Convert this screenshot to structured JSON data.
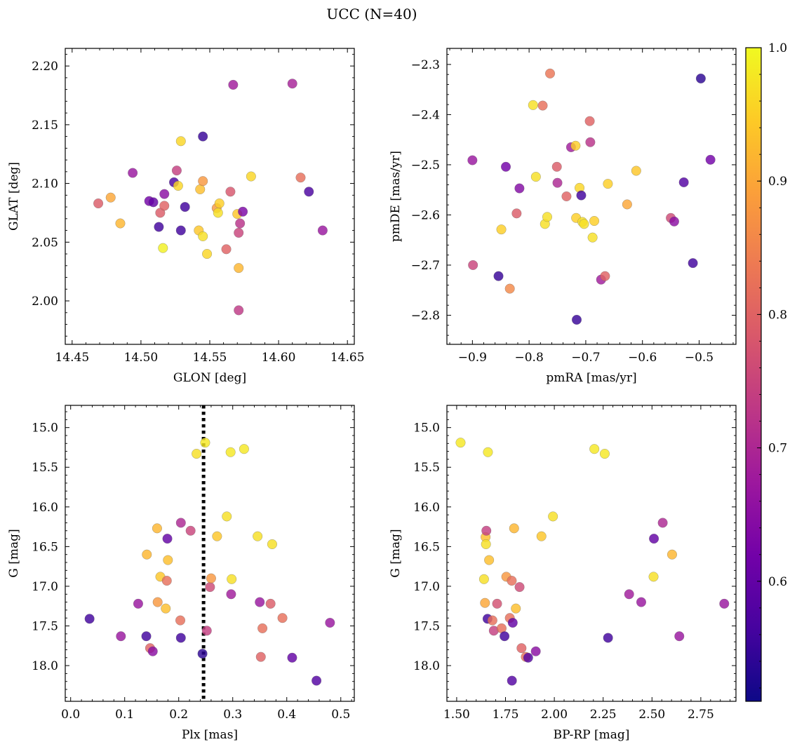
{
  "figure": {
    "title": "UCC (N=40)"
  },
  "colormap": {
    "name": "plasma",
    "range": [
      0.51,
      1.0
    ],
    "ticks": [
      "0.6",
      "0.7",
      "0.8",
      "0.9",
      "1.0"
    ],
    "tick_values": [
      0.6,
      0.7,
      0.8,
      0.9,
      1.0
    ],
    "stops": [
      "#0d0887",
      "#46039f",
      "#7201a8",
      "#9c179e",
      "#bd3786",
      "#d8576b",
      "#ed7953",
      "#fb9f3a",
      "#fdca26",
      "#f0f921"
    ]
  },
  "chart_data": [
    {
      "type": "scatter",
      "xlabel": "GLON [deg]",
      "ylabel": "GLAT [deg]",
      "xlim": [
        14.445,
        14.655
      ],
      "ylim": [
        1.963,
        2.215
      ],
      "xticks": [
        14.45,
        14.5,
        14.55,
        14.6,
        14.65
      ],
      "xtick_labels": [
        "14.45",
        "14.50",
        "14.55",
        "14.60",
        "14.65"
      ],
      "yticks": [
        2.0,
        2.05,
        2.1,
        2.15,
        2.2
      ],
      "ytick_labels": [
        "2.00",
        "2.05",
        "2.10",
        "2.15",
        "2.20"
      ],
      "points": [
        {
          "x": 14.469,
          "y": 2.083,
          "c": 0.79
        },
        {
          "x": 14.478,
          "y": 2.088,
          "c": 0.9
        },
        {
          "x": 14.485,
          "y": 2.066,
          "c": 0.92
        },
        {
          "x": 14.494,
          "y": 2.109,
          "c": 0.67
        },
        {
          "x": 14.506,
          "y": 2.085,
          "c": 0.62
        },
        {
          "x": 14.509,
          "y": 2.084,
          "c": 0.6
        },
        {
          "x": 14.513,
          "y": 2.063,
          "c": 0.56
        },
        {
          "x": 14.514,
          "y": 2.075,
          "c": 0.79
        },
        {
          "x": 14.516,
          "y": 2.045,
          "c": 0.99
        },
        {
          "x": 14.517,
          "y": 2.081,
          "c": 0.8
        },
        {
          "x": 14.517,
          "y": 2.091,
          "c": 0.65
        },
        {
          "x": 14.524,
          "y": 2.101,
          "c": 0.57
        },
        {
          "x": 14.526,
          "y": 2.111,
          "c": 0.74
        },
        {
          "x": 14.527,
          "y": 2.098,
          "c": 0.96
        },
        {
          "x": 14.529,
          "y": 2.136,
          "c": 0.96
        },
        {
          "x": 14.529,
          "y": 2.06,
          "c": 0.56
        },
        {
          "x": 14.532,
          "y": 2.08,
          "c": 0.56
        },
        {
          "x": 14.542,
          "y": 2.06,
          "c": 0.94
        },
        {
          "x": 14.543,
          "y": 2.095,
          "c": 0.93
        },
        {
          "x": 14.545,
          "y": 2.14,
          "c": 0.55
        },
        {
          "x": 14.545,
          "y": 2.102,
          "c": 0.88
        },
        {
          "x": 14.545,
          "y": 2.055,
          "c": 0.97
        },
        {
          "x": 14.548,
          "y": 2.04,
          "c": 0.96
        },
        {
          "x": 14.555,
          "y": 2.079,
          "c": 0.88
        },
        {
          "x": 14.556,
          "y": 2.075,
          "c": 0.97
        },
        {
          "x": 14.557,
          "y": 2.083,
          "c": 0.95
        },
        {
          "x": 14.562,
          "y": 2.044,
          "c": 0.8
        },
        {
          "x": 14.565,
          "y": 2.093,
          "c": 0.78
        },
        {
          "x": 14.567,
          "y": 2.184,
          "c": 0.68
        },
        {
          "x": 14.57,
          "y": 2.074,
          "c": 0.94
        },
        {
          "x": 14.571,
          "y": 2.028,
          "c": 0.92
        },
        {
          "x": 14.571,
          "y": 2.058,
          "c": 0.75
        },
        {
          "x": 14.571,
          "y": 1.992,
          "c": 0.73
        },
        {
          "x": 14.572,
          "y": 2.066,
          "c": 0.72
        },
        {
          "x": 14.574,
          "y": 2.076,
          "c": 0.63
        },
        {
          "x": 14.58,
          "y": 2.106,
          "c": 0.96
        },
        {
          "x": 14.61,
          "y": 2.185,
          "c": 0.69
        },
        {
          "x": 14.616,
          "y": 2.105,
          "c": 0.82
        },
        {
          "x": 14.622,
          "y": 2.093,
          "c": 0.57
        },
        {
          "x": 14.632,
          "y": 2.06,
          "c": 0.67
        }
      ]
    },
    {
      "type": "scatter",
      "xlabel": "pmRA [mas/yr]",
      "ylabel": "pmDE [mas/yr]",
      "xlim": [
        -0.945,
        -0.435
      ],
      "ylim": [
        -2.858,
        -2.268
      ],
      "xticks": [
        -0.9,
        -0.8,
        -0.7,
        -0.6,
        -0.5
      ],
      "xtick_labels": [
        "−0.9",
        "−0.8",
        "−0.7",
        "−0.6",
        "−0.5"
      ],
      "yticks": [
        -2.8,
        -2.7,
        -2.6,
        -2.5,
        -2.4,
        -2.3
      ],
      "ytick_labels": [
        "−2.8",
        "−2.7",
        "−2.6",
        "−2.5",
        "−2.4",
        "−2.3"
      ],
      "points": [
        {
          "x": -0.9,
          "y": -2.491,
          "c": 0.67
        },
        {
          "x": -0.899,
          "y": -2.7,
          "c": 0.75
        },
        {
          "x": -0.854,
          "y": -2.722,
          "c": 0.55
        },
        {
          "x": -0.849,
          "y": -2.629,
          "c": 0.95
        },
        {
          "x": -0.841,
          "y": -2.504,
          "c": 0.62
        },
        {
          "x": -0.834,
          "y": -2.747,
          "c": 0.86
        },
        {
          "x": -0.822,
          "y": -2.597,
          "c": 0.79
        },
        {
          "x": -0.817,
          "y": -2.547,
          "c": 0.64
        },
        {
          "x": -0.793,
          "y": -2.381,
          "c": 0.97
        },
        {
          "x": -0.788,
          "y": -2.524,
          "c": 0.97
        },
        {
          "x": -0.776,
          "y": -2.382,
          "c": 0.82
        },
        {
          "x": -0.772,
          "y": -2.618,
          "c": 0.97
        },
        {
          "x": -0.768,
          "y": -2.604,
          "c": 0.97
        },
        {
          "x": -0.763,
          "y": -2.318,
          "c": 0.83
        },
        {
          "x": -0.751,
          "y": -2.504,
          "c": 0.79
        },
        {
          "x": -0.75,
          "y": -2.536,
          "c": 0.7
        },
        {
          "x": -0.734,
          "y": -2.563,
          "c": 0.8
        },
        {
          "x": -0.726,
          "y": -2.465,
          "c": 0.68
        },
        {
          "x": -0.718,
          "y": -2.462,
          "c": 0.95
        },
        {
          "x": -0.717,
          "y": -2.606,
          "c": 0.95
        },
        {
          "x": -0.716,
          "y": -2.809,
          "c": 0.55
        },
        {
          "x": -0.711,
          "y": -2.546,
          "c": 0.96
        },
        {
          "x": -0.708,
          "y": -2.561,
          "c": 0.56
        },
        {
          "x": -0.706,
          "y": -2.614,
          "c": 0.97
        },
        {
          "x": -0.703,
          "y": -2.618,
          "c": 0.97
        },
        {
          "x": -0.693,
          "y": -2.413,
          "c": 0.8
        },
        {
          "x": -0.692,
          "y": -2.455,
          "c": 0.72
        },
        {
          "x": -0.688,
          "y": -2.645,
          "c": 0.97
        },
        {
          "x": -0.685,
          "y": -2.612,
          "c": 0.95
        },
        {
          "x": -0.673,
          "y": -2.729,
          "c": 0.68
        },
        {
          "x": -0.666,
          "y": -2.722,
          "c": 0.8
        },
        {
          "x": -0.661,
          "y": -2.538,
          "c": 0.95
        },
        {
          "x": -0.627,
          "y": -2.579,
          "c": 0.9
        },
        {
          "x": -0.611,
          "y": -2.512,
          "c": 0.94
        },
        {
          "x": -0.55,
          "y": -2.606,
          "c": 0.76
        },
        {
          "x": -0.544,
          "y": -2.613,
          "c": 0.65
        },
        {
          "x": -0.527,
          "y": -2.535,
          "c": 0.58
        },
        {
          "x": -0.511,
          "y": -2.696,
          "c": 0.56
        },
        {
          "x": -0.497,
          "y": -2.328,
          "c": 0.54
        },
        {
          "x": -0.48,
          "y": -2.49,
          "c": 0.62
        }
      ]
    },
    {
      "type": "scatter",
      "xlabel": "Plx [mas]",
      "ylabel": "G [mag]",
      "xlim": [
        -0.01,
        0.525
      ],
      "ylim": [
        18.45,
        14.72
      ],
      "yinverted": true,
      "vline": {
        "x": 0.246,
        "style": "dotted",
        "color": "#000000"
      },
      "xticks": [
        0.0,
        0.1,
        0.2,
        0.3,
        0.4,
        0.5
      ],
      "xtick_labels": [
        "0.0",
        "0.1",
        "0.2",
        "0.3",
        "0.4",
        "0.5"
      ],
      "yticks": [
        15.0,
        15.5,
        16.0,
        16.5,
        17.0,
        17.5,
        18.0
      ],
      "ytick_labels": [
        "15.0",
        "15.5",
        "16.0",
        "16.5",
        "17.0",
        "17.5",
        "18.0"
      ],
      "points": [
        {
          "x": 0.035,
          "y": 17.41,
          "c": 0.56
        },
        {
          "x": 0.093,
          "y": 17.63,
          "c": 0.67
        },
        {
          "x": 0.125,
          "y": 17.22,
          "c": 0.67
        },
        {
          "x": 0.14,
          "y": 17.63,
          "c": 0.56
        },
        {
          "x": 0.141,
          "y": 16.6,
          "c": 0.92
        },
        {
          "x": 0.147,
          "y": 17.78,
          "c": 0.8
        },
        {
          "x": 0.152,
          "y": 17.82,
          "c": 0.65
        },
        {
          "x": 0.16,
          "y": 16.27,
          "c": 0.92
        },
        {
          "x": 0.161,
          "y": 17.2,
          "c": 0.88
        },
        {
          "x": 0.166,
          "y": 16.88,
          "c": 0.94
        },
        {
          "x": 0.176,
          "y": 17.28,
          "c": 0.93
        },
        {
          "x": 0.178,
          "y": 16.93,
          "c": 0.82
        },
        {
          "x": 0.179,
          "y": 16.4,
          "c": 0.6
        },
        {
          "x": 0.18,
          "y": 16.67,
          "c": 0.93
        },
        {
          "x": 0.203,
          "y": 17.43,
          "c": 0.82
        },
        {
          "x": 0.204,
          "y": 16.2,
          "c": 0.7
        },
        {
          "x": 0.204,
          "y": 17.65,
          "c": 0.56
        },
        {
          "x": 0.222,
          "y": 16.3,
          "c": 0.75
        },
        {
          "x": 0.233,
          "y": 15.33,
          "c": 0.97
        },
        {
          "x": 0.244,
          "y": 17.85,
          "c": 0.54
        },
        {
          "x": 0.249,
          "y": 15.19,
          "c": 0.98
        },
        {
          "x": 0.252,
          "y": 17.56,
          "c": 0.74
        },
        {
          "x": 0.258,
          "y": 17.01,
          "c": 0.76
        },
        {
          "x": 0.26,
          "y": 16.9,
          "c": 0.88
        },
        {
          "x": 0.271,
          "y": 16.37,
          "c": 0.94
        },
        {
          "x": 0.289,
          "y": 16.12,
          "c": 0.97
        },
        {
          "x": 0.296,
          "y": 15.31,
          "c": 0.98
        },
        {
          "x": 0.297,
          "y": 17.1,
          "c": 0.68
        },
        {
          "x": 0.298,
          "y": 16.91,
          "c": 0.97
        },
        {
          "x": 0.321,
          "y": 15.27,
          "c": 0.98
        },
        {
          "x": 0.346,
          "y": 16.37,
          "c": 0.97
        },
        {
          "x": 0.35,
          "y": 17.2,
          "c": 0.67
        },
        {
          "x": 0.352,
          "y": 17.89,
          "c": 0.8
        },
        {
          "x": 0.355,
          "y": 17.53,
          "c": 0.82
        },
        {
          "x": 0.37,
          "y": 17.22,
          "c": 0.79
        },
        {
          "x": 0.373,
          "y": 16.47,
          "c": 0.97
        },
        {
          "x": 0.392,
          "y": 17.4,
          "c": 0.82
        },
        {
          "x": 0.41,
          "y": 17.9,
          "c": 0.6
        },
        {
          "x": 0.455,
          "y": 18.19,
          "c": 0.58
        },
        {
          "x": 0.48,
          "y": 17.46,
          "c": 0.67
        }
      ]
    },
    {
      "type": "scatter",
      "xlabel": "BP-RP [mag]",
      "ylabel": "G [mag]",
      "xlim": [
        1.45,
        2.93
      ],
      "ylim": [
        18.45,
        14.72
      ],
      "yinverted": true,
      "xticks": [
        1.5,
        1.75,
        2.0,
        2.25,
        2.5,
        2.75
      ],
      "xtick_labels": [
        "1.50",
        "1.75",
        "2.00",
        "2.25",
        "2.50",
        "2.75"
      ],
      "yticks": [
        15.0,
        15.5,
        16.0,
        16.5,
        17.0,
        17.5,
        18.0
      ],
      "ytick_labels": [
        "15.0",
        "15.5",
        "16.0",
        "16.5",
        "17.0",
        "17.5",
        "18.0"
      ],
      "points": [
        {
          "x": 1.52,
          "y": 15.19,
          "c": 0.98
        },
        {
          "x": 1.64,
          "y": 16.91,
          "c": 0.97
        },
        {
          "x": 1.645,
          "y": 17.21,
          "c": 0.9
        },
        {
          "x": 1.648,
          "y": 16.38,
          "c": 0.93
        },
        {
          "x": 1.65,
          "y": 16.47,
          "c": 0.97
        },
        {
          "x": 1.652,
          "y": 16.3,
          "c": 0.74
        },
        {
          "x": 1.658,
          "y": 17.41,
          "c": 0.56
        },
        {
          "x": 1.66,
          "y": 15.31,
          "c": 0.98
        },
        {
          "x": 1.666,
          "y": 16.67,
          "c": 0.93
        },
        {
          "x": 1.683,
          "y": 17.43,
          "c": 0.82
        },
        {
          "x": 1.69,
          "y": 17.56,
          "c": 0.74
        },
        {
          "x": 1.707,
          "y": 17.22,
          "c": 0.77
        },
        {
          "x": 1.73,
          "y": 17.53,
          "c": 0.82
        },
        {
          "x": 1.745,
          "y": 17.63,
          "c": 0.56
        },
        {
          "x": 1.754,
          "y": 16.88,
          "c": 0.88
        },
        {
          "x": 1.772,
          "y": 17.4,
          "c": 0.82
        },
        {
          "x": 1.782,
          "y": 16.93,
          "c": 0.82
        },
        {
          "x": 1.783,
          "y": 18.19,
          "c": 0.58
        },
        {
          "x": 1.787,
          "y": 17.46,
          "c": 0.6
        },
        {
          "x": 1.794,
          "y": 16.27,
          "c": 0.92
        },
        {
          "x": 1.803,
          "y": 17.28,
          "c": 0.93
        },
        {
          "x": 1.822,
          "y": 17.01,
          "c": 0.76
        },
        {
          "x": 1.832,
          "y": 17.78,
          "c": 0.8
        },
        {
          "x": 1.854,
          "y": 17.89,
          "c": 0.82
        },
        {
          "x": 1.866,
          "y": 17.9,
          "c": 0.58
        },
        {
          "x": 1.905,
          "y": 17.82,
          "c": 0.65
        },
        {
          "x": 1.934,
          "y": 16.37,
          "c": 0.94
        },
        {
          "x": 1.993,
          "y": 16.12,
          "c": 0.97
        },
        {
          "x": 2.205,
          "y": 15.27,
          "c": 0.98
        },
        {
          "x": 2.258,
          "y": 15.33,
          "c": 0.98
        },
        {
          "x": 2.275,
          "y": 17.65,
          "c": 0.56
        },
        {
          "x": 2.383,
          "y": 17.1,
          "c": 0.68
        },
        {
          "x": 2.445,
          "y": 17.2,
          "c": 0.67
        },
        {
          "x": 2.508,
          "y": 16.88,
          "c": 0.97
        },
        {
          "x": 2.51,
          "y": 16.4,
          "c": 0.6
        },
        {
          "x": 2.555,
          "y": 16.2,
          "c": 0.7
        },
        {
          "x": 2.603,
          "y": 16.6,
          "c": 0.92
        },
        {
          "x": 2.64,
          "y": 17.63,
          "c": 0.67
        },
        {
          "x": 2.87,
          "y": 17.22,
          "c": 0.67
        }
      ]
    }
  ]
}
